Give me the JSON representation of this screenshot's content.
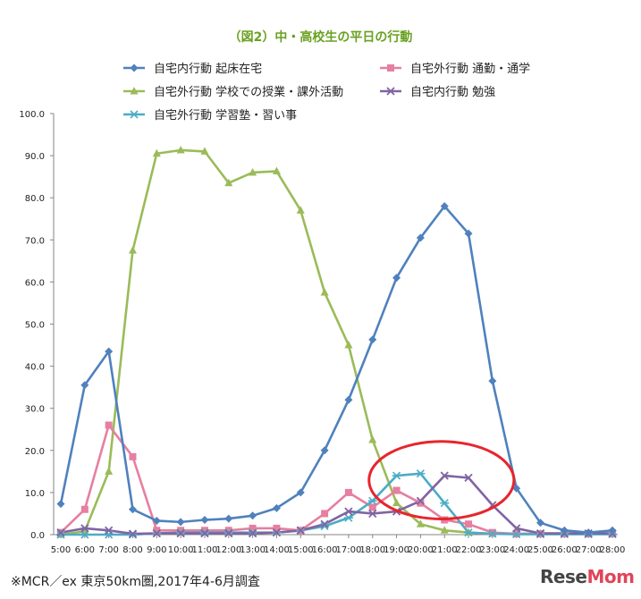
{
  "chart_data": {
    "type": "line",
    "title": "（図2）中・高校生の平日の行動",
    "xlabel": "",
    "ylabel": "",
    "ylim": [
      0,
      100
    ],
    "grid": false,
    "legend_placement": "top",
    "y_ticks": [
      "0.0",
      "10.0",
      "20.0",
      "30.0",
      "40.0",
      "50.0",
      "60.0",
      "70.0",
      "80.0",
      "90.0",
      "100.0"
    ],
    "categories": [
      "5:00",
      "6:00",
      "7:00",
      "8:00",
      "9:00",
      "10:00",
      "11:00",
      "12:00",
      "13:00",
      "14:00",
      "15:00",
      "16:00",
      "17:00",
      "18:00",
      "19:00",
      "20:00",
      "21:00",
      "22:00",
      "23:00",
      "24:00",
      "25:00",
      "26:00",
      "27:00",
      "28:00"
    ],
    "series": [
      {
        "name": "自宅内行動 起床在宅",
        "color": "#4f81bd",
        "marker": "diamond",
        "values": [
          7.3,
          35.5,
          43.5,
          6.0,
          3.3,
          3.0,
          3.5,
          3.8,
          4.5,
          6.3,
          10.0,
          20.0,
          32.0,
          46.3,
          61.0,
          70.5,
          78.0,
          71.5,
          36.5,
          11.0,
          2.8,
          1.0,
          0.5,
          1.0
        ]
      },
      {
        "name": "自宅外行動 通勤・通学",
        "color": "#e67fa0",
        "marker": "square",
        "values": [
          0.5,
          6.0,
          26.0,
          18.5,
          1.0,
          1.0,
          1.0,
          1.0,
          1.5,
          1.5,
          1.0,
          5.0,
          10.0,
          6.5,
          10.5,
          7.5,
          3.5,
          2.5,
          0.5,
          0.2,
          0.2,
          0.2,
          0.2,
          0.2
        ]
      },
      {
        "name": "自宅外行動 学校での授業・課外活動",
        "color": "#9bbb59",
        "marker": "triangle",
        "values": [
          0.0,
          0.8,
          15.0,
          67.5,
          90.5,
          91.3,
          91.0,
          83.5,
          86.0,
          86.3,
          77.0,
          57.5,
          45.0,
          22.5,
          7.5,
          2.5,
          1.0,
          0.5,
          0.2,
          0.2,
          0.2,
          0.2,
          0.2,
          0.2
        ]
      },
      {
        "name": "自宅内行動 勉強",
        "color": "#8064a2",
        "marker": "x",
        "values": [
          0.5,
          1.5,
          1.0,
          0.2,
          0.3,
          0.3,
          0.3,
          0.3,
          0.3,
          0.5,
          1.0,
          2.5,
          5.5,
          5.0,
          5.5,
          8.0,
          14.0,
          13.5,
          7.0,
          1.5,
          0.3,
          0.3,
          0.3,
          0.3
        ]
      },
      {
        "name": "自宅外行動 学習塾・習い事",
        "color": "#4bacc6",
        "marker": "star",
        "values": [
          0.0,
          0.0,
          0.0,
          0.0,
          0.3,
          0.5,
          0.5,
          0.5,
          0.5,
          0.5,
          1.0,
          2.0,
          4.0,
          8.0,
          14.0,
          14.5,
          7.5,
          0.5,
          0.2,
          0.1,
          0.1,
          0.1,
          0.1,
          0.1
        ]
      }
    ],
    "annotations": [
      {
        "type": "ellipse",
        "color": "#e8252d",
        "x_range": [
          "18:00",
          "23:00"
        ],
        "y_range": [
          5,
          20
        ]
      }
    ]
  },
  "footnote": "※MCR／ex 東京50km圏,2017年4-6月調査",
  "logo": {
    "main": "ResеMom",
    "text_part1": "Rese",
    "text_part2": "Mom",
    "accent_color": "#e0455a"
  }
}
